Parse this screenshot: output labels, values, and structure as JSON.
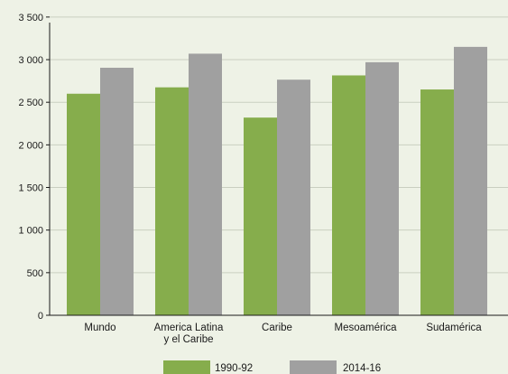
{
  "chart_data": {
    "type": "bar",
    "categories": [
      [
        "Mundo"
      ],
      [
        "America Latina",
        "y el Caribe"
      ],
      [
        "Caribe"
      ],
      [
        "Mesoamérica"
      ],
      [
        "Sudamérica"
      ]
    ],
    "series": [
      {
        "name": "1990-92",
        "values": [
          2600,
          2675,
          2320,
          2815,
          2650
        ],
        "color": "#86ad4c"
      },
      {
        "name": "2014-16",
        "values": [
          2905,
          3070,
          2765,
          2970,
          3150
        ],
        "color": "#a0a0a0"
      }
    ],
    "y_ticks": [
      0,
      500,
      1000,
      1500,
      2000,
      2500,
      3000,
      3500
    ],
    "y_tick_labels": [
      "0",
      "500",
      "1 000",
      "1 500",
      "2 000",
      "2 500",
      "3 000",
      "3 500"
    ],
    "ylim": [
      0,
      3700
    ],
    "grid": true,
    "legend_position": "bottom-center",
    "colors": {
      "background": "#eef2e6",
      "grid": "#c9cfc0",
      "axis": "#1a1a1a"
    }
  }
}
